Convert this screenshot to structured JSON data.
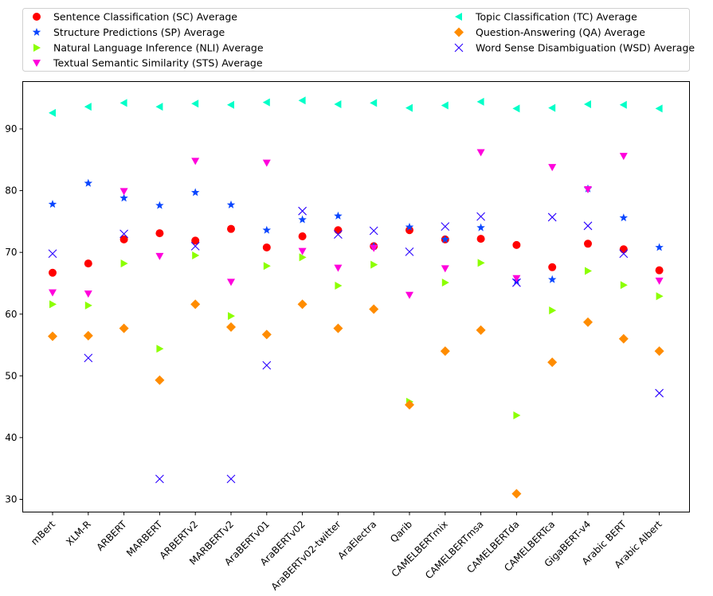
{
  "chart_data": {
    "type": "scatter",
    "title": "",
    "xlabel": "",
    "ylabel": "",
    "ylim": [
      28,
      96
    ],
    "yticks": [
      30,
      40,
      50,
      60,
      70,
      80,
      90
    ],
    "grid": false,
    "legend_position": "top",
    "categories": [
      "mBert",
      "XLM-R",
      "ARBERT",
      "MARBERT",
      "ARBERTv2",
      "MARBERTv2",
      "AraBERTv01",
      "AraBERTv02",
      "AraBERTv02-twitter",
      "AraElectra",
      "Qarib",
      "CAMELBERTmix",
      "CAMELBERTmsa",
      "CAMELBERTda",
      "CAMELBERTca",
      "GigaBERT-v4",
      "Arabic BERT",
      "Arabic Albert"
    ],
    "series": [
      {
        "name": "Sentence Classification (SC) Average",
        "marker": "circle",
        "color": "#ff0000",
        "values": [
          66.7,
          68.2,
          72.1,
          73.1,
          71.9,
          73.8,
          70.8,
          72.6,
          73.6,
          71.0,
          73.6,
          72.1,
          72.2,
          71.2,
          67.6,
          71.4,
          70.5,
          67.1
        ]
      },
      {
        "name": "Structure Predictions (SP) Average",
        "marker": "star",
        "color": "#0a46ff",
        "values": [
          77.8,
          81.2,
          78.8,
          77.6,
          79.7,
          77.7,
          73.6,
          75.3,
          75.9,
          71.0,
          74.1,
          72.1,
          74.0,
          65.4,
          65.6,
          80.3,
          75.6,
          70.8
        ]
      },
      {
        "name": "Natural Language Inference (NLI) Average",
        "marker": "triangle-right",
        "color": "#8cff00",
        "values": [
          61.6,
          61.4,
          68.2,
          54.4,
          69.5,
          59.7,
          67.8,
          69.2,
          64.6,
          68.0,
          45.8,
          65.1,
          68.3,
          43.6,
          60.6,
          67.0,
          64.7,
          62.9
        ]
      },
      {
        "name": "Textual Semantic Similarity (STS) Average",
        "marker": "triangle-down",
        "color": "#ff00dc",
        "values": [
          63.5,
          63.3,
          79.9,
          69.4,
          84.8,
          65.2,
          84.5,
          70.2,
          67.5,
          70.7,
          63.1,
          67.4,
          86.2,
          65.8,
          83.8,
          80.2,
          85.6,
          65.4
        ]
      },
      {
        "name": "Topic Classification (TC) Average",
        "marker": "triangle-left",
        "color": "#00ffc8",
        "values": [
          92.6,
          93.6,
          94.2,
          93.6,
          94.1,
          93.9,
          94.3,
          94.6,
          94.0,
          94.2,
          93.4,
          93.8,
          94.4,
          93.3,
          93.4,
          94.0,
          93.9,
          93.3
        ]
      },
      {
        "name": "Question-Answering (QA) Average",
        "marker": "diamond",
        "color": "#ff8c00",
        "values": [
          56.4,
          56.5,
          57.7,
          49.3,
          61.6,
          57.9,
          56.7,
          61.6,
          57.7,
          60.8,
          45.3,
          54.0,
          57.4,
          30.9,
          52.2,
          58.7,
          56.0,
          54.0
        ]
      },
      {
        "name": "Word Sense Disambiguation (WSD) Average",
        "marker": "x",
        "color": "#2a00ff",
        "values": [
          69.8,
          52.9,
          73.0,
          33.3,
          71.0,
          33.3,
          51.7,
          76.7,
          72.9,
          73.5,
          70.1,
          74.2,
          75.8,
          65.1,
          75.7,
          74.3,
          69.8,
          47.2
        ]
      }
    ],
    "legend": {
      "left_column": [
        0,
        1,
        2,
        3
      ],
      "right_column": [
        4,
        5,
        6
      ]
    }
  }
}
